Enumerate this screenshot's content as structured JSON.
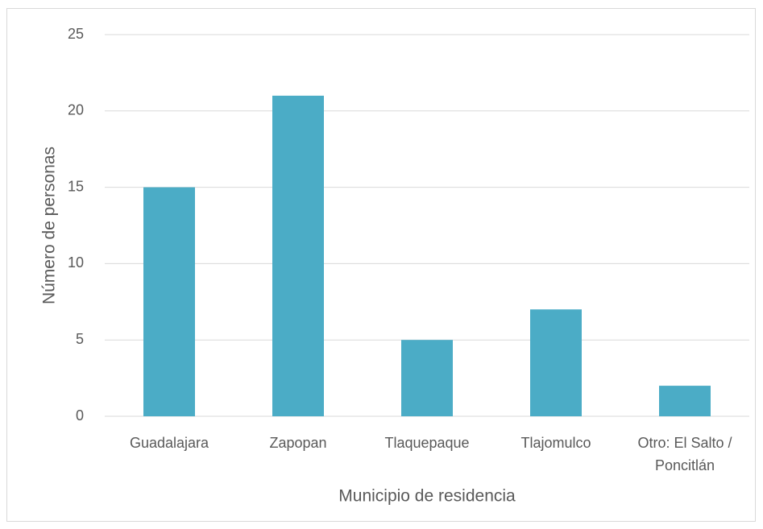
{
  "chart_data": {
    "type": "bar",
    "categories": [
      "Guadalajara",
      "Zapopan",
      "Tlaquepaque",
      "Tlajomulco",
      "Otro: El Salto / Poncitlán"
    ],
    "values": [
      15,
      21,
      5,
      7,
      2
    ],
    "color": "#4bacc6",
    "xlabel": "Municipio de residencia",
    "ylabel": "Número de personas",
    "ylim": [
      0,
      25
    ],
    "yticks": [
      0,
      5,
      10,
      15,
      20,
      25
    ],
    "grid": true
  }
}
